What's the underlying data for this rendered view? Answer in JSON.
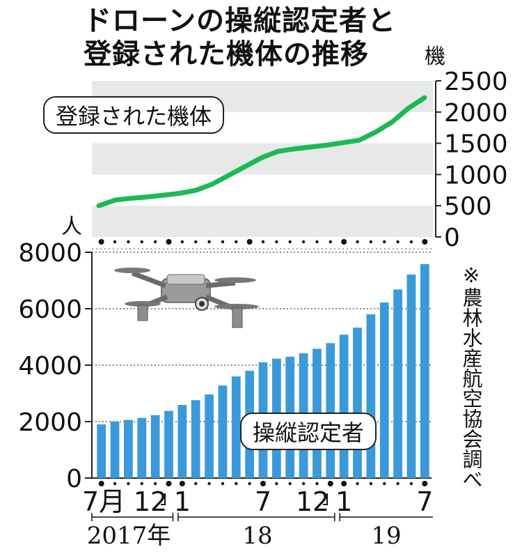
{
  "title": [
    "ドローンの操縦認定者と",
    "登録された機体の推移"
  ],
  "source_note": "※農林水産航空協会調べ",
  "colors": {
    "line": "#1db954",
    "bar": "#3a9ad9",
    "band": "#e6e9e8",
    "axis": "#222222"
  },
  "chart_data": [
    {
      "type": "line",
      "label": "登録された機体",
      "unit": "機",
      "ylim": [
        0,
        2500
      ],
      "yticks": [
        "0",
        "500",
        "1000",
        "1500",
        "2000",
        "2500"
      ],
      "grid": "alternating bands",
      "series": [
        {
          "values": [
            500,
            590,
            620,
            640,
            670,
            700,
            750,
            850,
            990,
            1130,
            1270,
            1370,
            1410,
            1440,
            1470,
            1510,
            1550,
            1680,
            1840,
            2060,
            2230
          ]
        }
      ]
    },
    {
      "type": "bar",
      "label": "操縦認定者",
      "unit": "人",
      "ylim": [
        0,
        8000
      ],
      "yticks": [
        "0",
        "2000",
        "4000",
        "6000",
        "8000"
      ],
      "grid": "dotted",
      "series": [
        {
          "values": [
            1900,
            2000,
            2060,
            2130,
            2230,
            2380,
            2590,
            2760,
            2960,
            3280,
            3600,
            3800,
            4100,
            4230,
            4300,
            4420,
            4580,
            4780,
            5080,
            5330,
            5800,
            6220,
            6680,
            7210,
            7580
          ]
        }
      ],
      "x_tick_labels": [
        "7月",
        "12",
        "1",
        "7",
        "12",
        "1",
        "7"
      ],
      "year_labels": [
        "2017年",
        "18",
        "19"
      ]
    }
  ]
}
